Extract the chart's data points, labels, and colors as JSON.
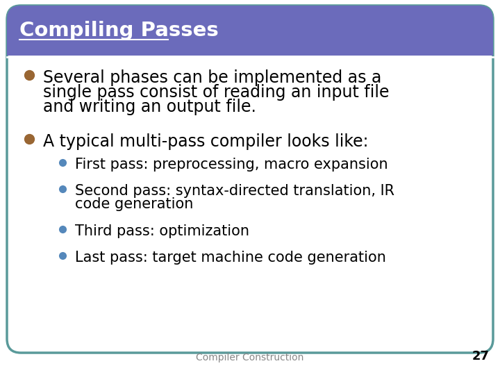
{
  "title": "Compiling Passes",
  "title_bg_color": "#6B6BBB",
  "title_text_color": "#FFFFFF",
  "slide_bg_color": "#FFFFFF",
  "border_color": "#5A9A9A",
  "footer_text": "Compiler Construction",
  "footer_number": "27",
  "bullet_color_main": "#996633",
  "bullet_color_sub": "#5588BB",
  "main_bullet_1_line1": "Several phases can be implemented as a",
  "main_bullet_1_line2": "single pass consist of reading an input file",
  "main_bullet_1_line3": "and writing an output file.",
  "main_bullet_2": "A typical multi-pass compiler looks like:",
  "sub_bullet_1": "First pass: preprocessing, macro expansion",
  "sub_bullet_2_line1": "Second pass: syntax-directed translation, IR",
  "sub_bullet_2_line2": "code generation",
  "sub_bullet_3": "Third pass: optimization",
  "sub_bullet_4": "Last pass: target machine code generation",
  "main_font_size": 17,
  "sub_font_size": 15,
  "title_font_size": 21,
  "footer_font_size": 10
}
